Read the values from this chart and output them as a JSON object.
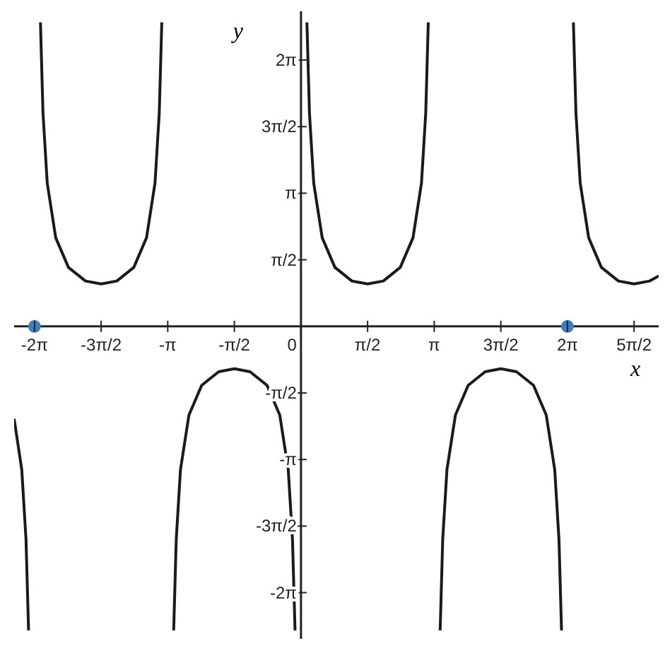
{
  "chart_data": {
    "type": "line",
    "xlabel": "x",
    "ylabel": "y",
    "xlim": [
      -6.76,
      8.43
    ],
    "ylim": [
      -7.37,
      7.43
    ],
    "xticks": [
      {
        "value": -6.28,
        "label": "-2π"
      },
      {
        "value": -4.71,
        "label": "-3π/2"
      },
      {
        "value": -3.14,
        "label": "-π"
      },
      {
        "value": -1.57,
        "label": "-π/2"
      },
      {
        "value": 0,
        "label": "0"
      },
      {
        "value": 1.57,
        "label": "π/2"
      },
      {
        "value": 3.14,
        "label": "π"
      },
      {
        "value": 4.71,
        "label": "3π/2"
      },
      {
        "value": 6.28,
        "label": "2π"
      },
      {
        "value": 7.85,
        "label": "5π/2"
      }
    ],
    "yticks": [
      {
        "value": -6.28,
        "label": "-2π"
      },
      {
        "value": -4.71,
        "label": "-3π/2"
      },
      {
        "value": -3.14,
        "label": "-π"
      },
      {
        "value": -1.57,
        "label": "-π/2"
      },
      {
        "value": 1.57,
        "label": "π/2"
      },
      {
        "value": 3.14,
        "label": "π"
      },
      {
        "value": 4.71,
        "label": "3π/2"
      },
      {
        "value": 6.28,
        "label": "2π"
      }
    ],
    "grid": false,
    "legend": false,
    "line_style": "solid",
    "series": [
      {
        "marker": "none",
        "color": "#1a1a1a",
        "x": [
          -6.76,
          -6.58,
          -6.48,
          -6.42,
          -6.28,
          -6.14,
          -6.08,
          -5.98,
          -5.78,
          -5.48,
          -5.08,
          -4.71,
          -4.34,
          -3.94,
          -3.64,
          -3.44,
          -3.34,
          -3.28,
          -3.14,
          -3.0,
          -2.94,
          -2.84,
          -2.64,
          -2.34,
          -1.94,
          -1.57,
          -1.2,
          -0.8,
          -0.5,
          -0.3,
          -0.2,
          -0.14,
          0,
          0.14,
          0.2,
          0.3,
          0.5,
          0.8,
          1.2,
          1.57,
          1.94,
          2.34,
          2.64,
          2.84,
          2.94,
          3.0,
          3.14,
          3.28,
          3.34,
          3.44,
          3.64,
          3.94,
          4.34,
          4.71,
          5.08,
          5.48,
          5.78,
          5.98,
          6.08,
          6.14,
          6.28,
          6.42,
          6.48,
          6.58,
          6.78,
          7.08,
          7.48,
          7.85,
          8.22,
          8.43
        ],
        "values": [
          -2.18,
          -3.38,
          -5.03,
          -7.17,
          null,
          7.17,
          5.03,
          3.38,
          2.09,
          1.39,
          1.07,
          1,
          1.07,
          1.39,
          2.09,
          3.38,
          5.03,
          7.17,
          null,
          -7.17,
          -5.03,
          -3.38,
          -2.09,
          -1.39,
          -1.07,
          -1,
          -1.07,
          -1.39,
          -2.09,
          -3.38,
          -5.03,
          -7.17,
          null,
          7.17,
          5.03,
          3.38,
          2.09,
          1.39,
          1.07,
          1,
          1.07,
          1.39,
          2.09,
          3.38,
          5.03,
          7.17,
          null,
          -7.17,
          -5.03,
          -3.38,
          -2.09,
          -1.39,
          -1.07,
          -1,
          -1.07,
          -1.39,
          -2.09,
          -3.38,
          -5.03,
          -7.17,
          null,
          7.17,
          5.03,
          3.38,
          2.09,
          1.39,
          1.07,
          1,
          1.07,
          1.19
        ]
      },
      {
        "type": "scatter",
        "marker": "circle",
        "color": "#3d7ec4",
        "x": [
          -6.28,
          6.28
        ],
        "values": [
          0,
          0
        ]
      }
    ]
  }
}
